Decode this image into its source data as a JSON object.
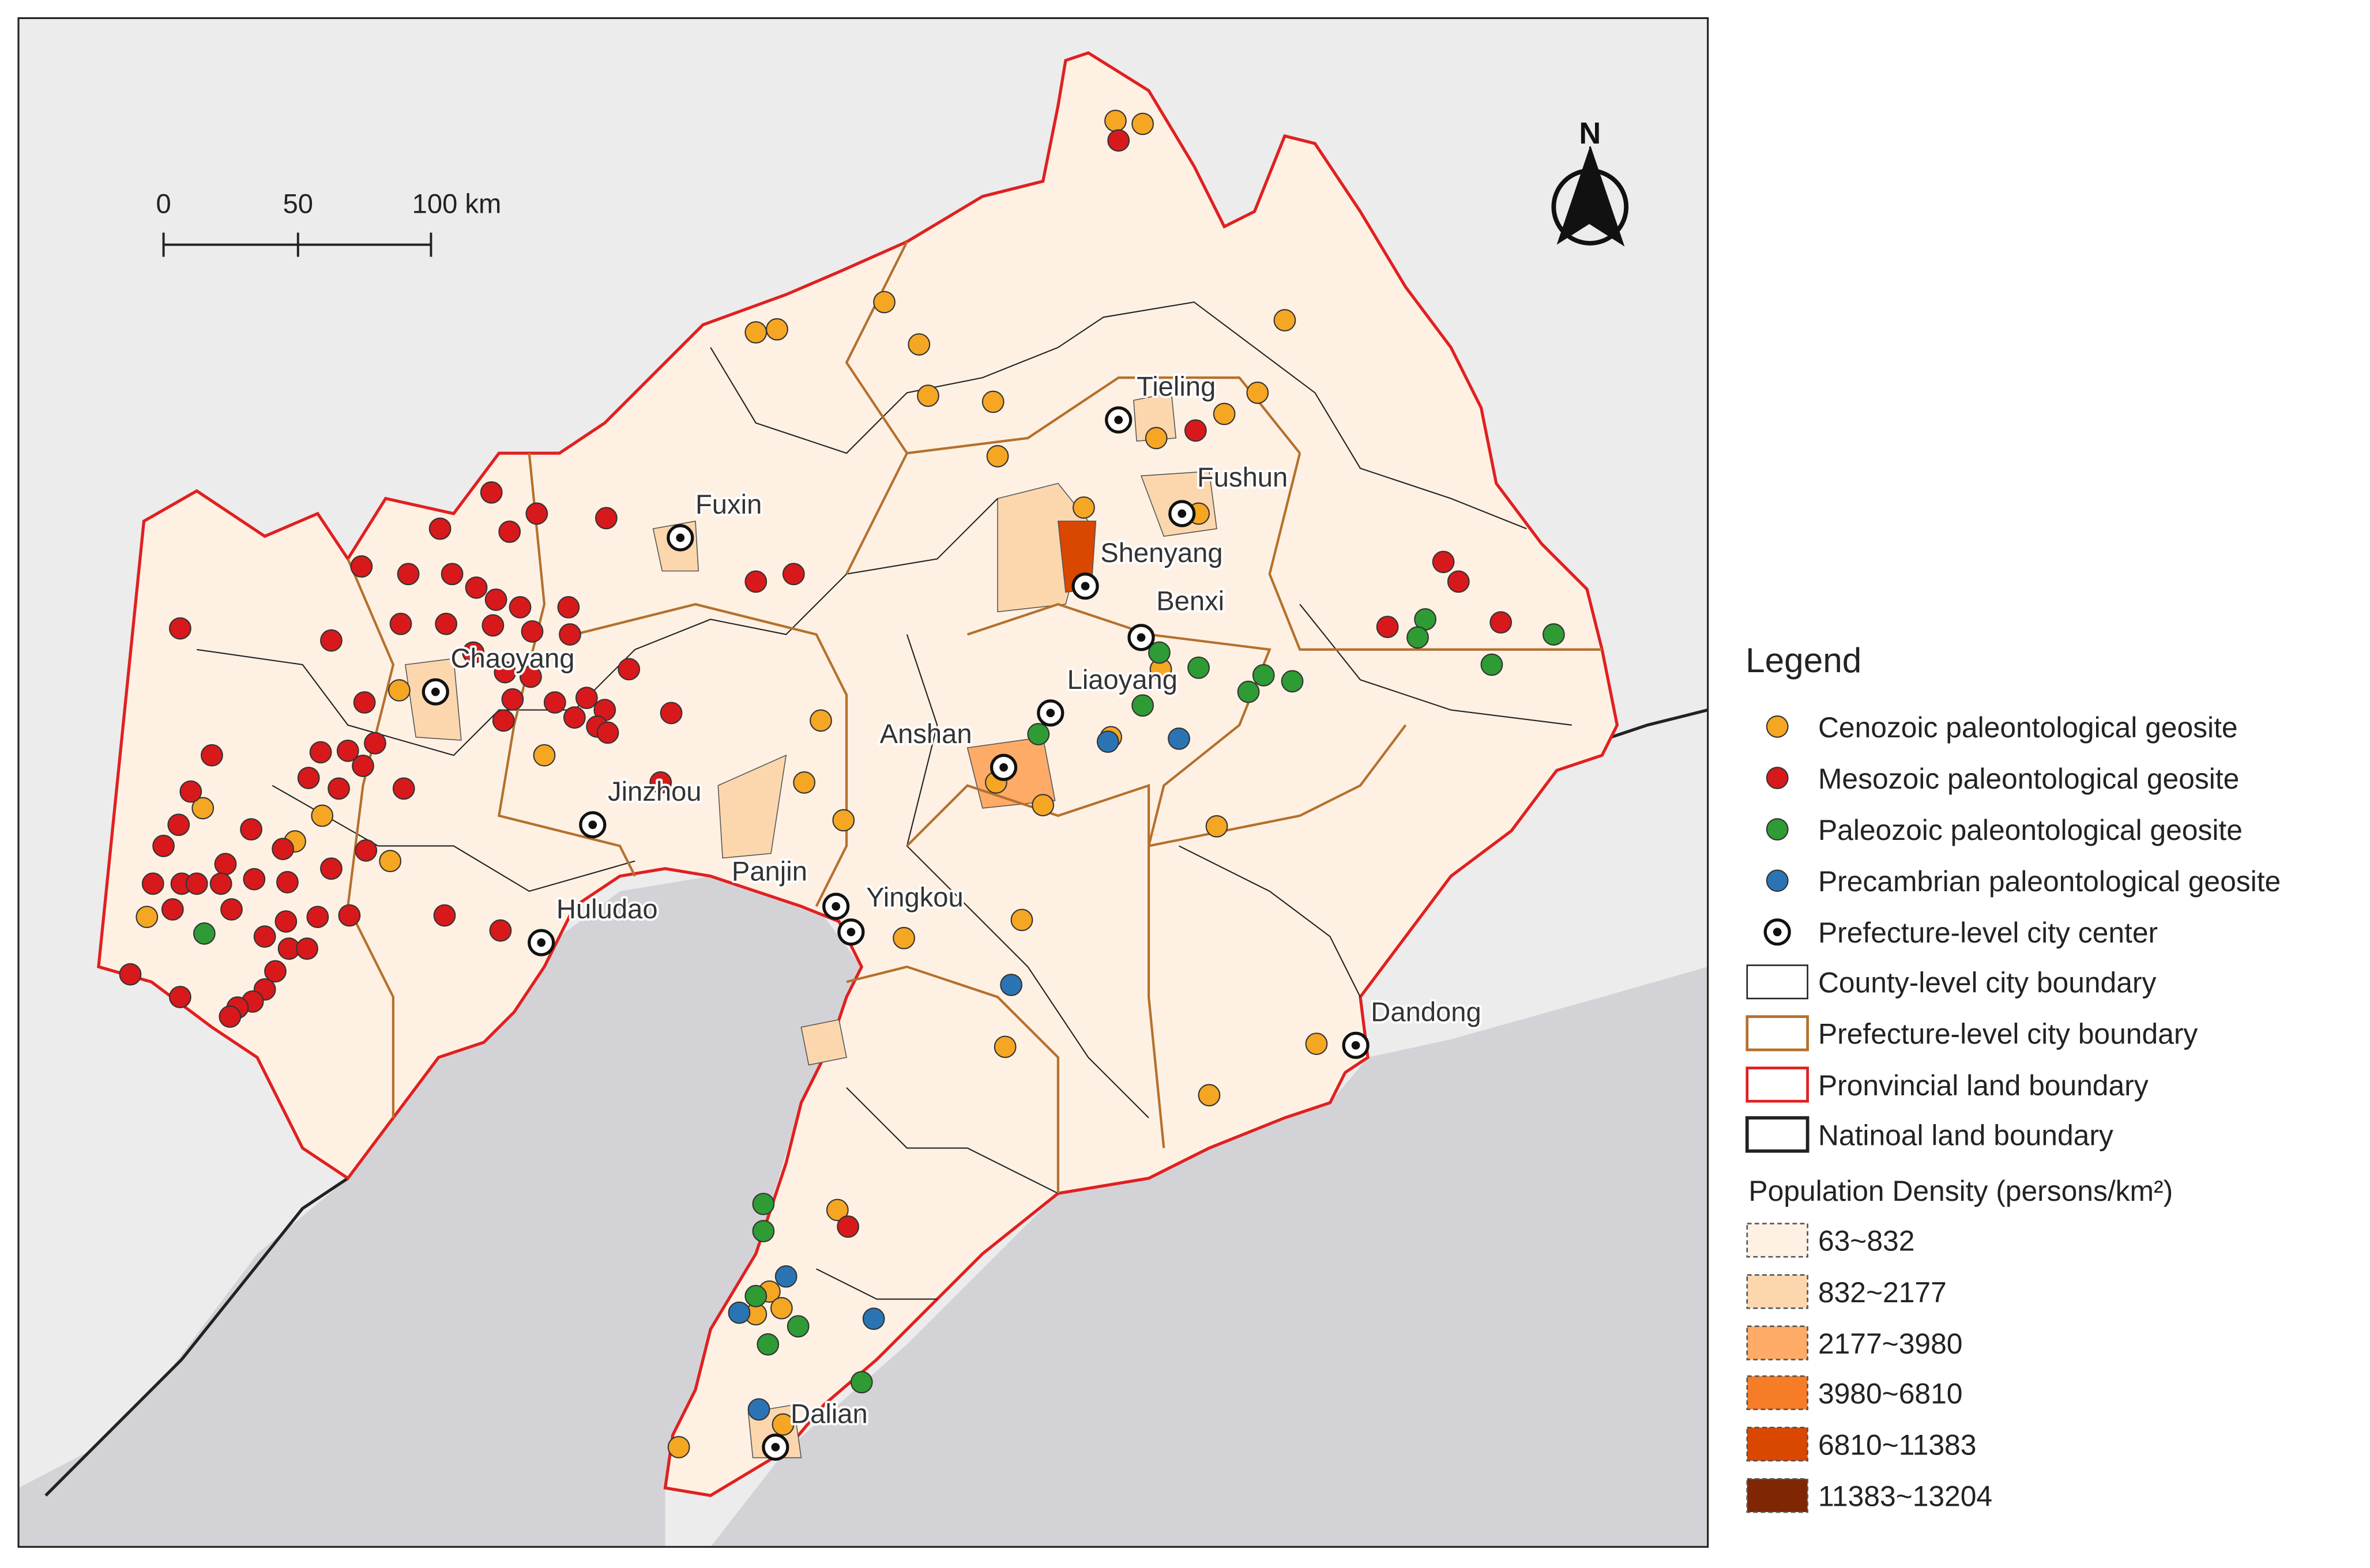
{
  "map": {
    "scale_bar": [
      "0",
      "50",
      "100 km"
    ],
    "north": "N",
    "cities": [
      "Tieling",
      "Fushun",
      "Fuxin",
      "Shenyang",
      "Benxi",
      "Chaoyang",
      "Liaoyang",
      "Anshan",
      "Jinzhou",
      "Panjin",
      "Yingkou",
      "Huludao",
      "Dandong",
      "Dalian"
    ]
  },
  "legend": {
    "title": "Legend",
    "items": [
      {
        "label": "Cenozoic paleontological geosite",
        "color": "#f5a623"
      },
      {
        "label": "Mesozoic paleontological geosite",
        "color": "#d7191c"
      },
      {
        "label": "Paleozoic paleontological geosite",
        "color": "#2e9b34"
      },
      {
        "label": "Precambrian paleontological geosite",
        "color": "#2b74b4"
      },
      {
        "label": "Prefecture-level city center"
      },
      {
        "label": "County-level city boundary"
      },
      {
        "label": "Prefecture-level city boundary"
      },
      {
        "label": "Pronvincial land boundary"
      },
      {
        "label": "Natinoal land boundary"
      }
    ],
    "density_title": "Population Density (persons/km²)",
    "density_classes": [
      {
        "label": "63~832",
        "color": "#fef1e4"
      },
      {
        "label": "832~2177",
        "color": "#fcd7ae"
      },
      {
        "label": "2177~3980",
        "color": "#fdab67"
      },
      {
        "label": "3980~6810",
        "color": "#f67c28"
      },
      {
        "label": "6810~11383",
        "color": "#d94701"
      },
      {
        "label": "11383~13204",
        "color": "#7f2704"
      }
    ]
  }
}
